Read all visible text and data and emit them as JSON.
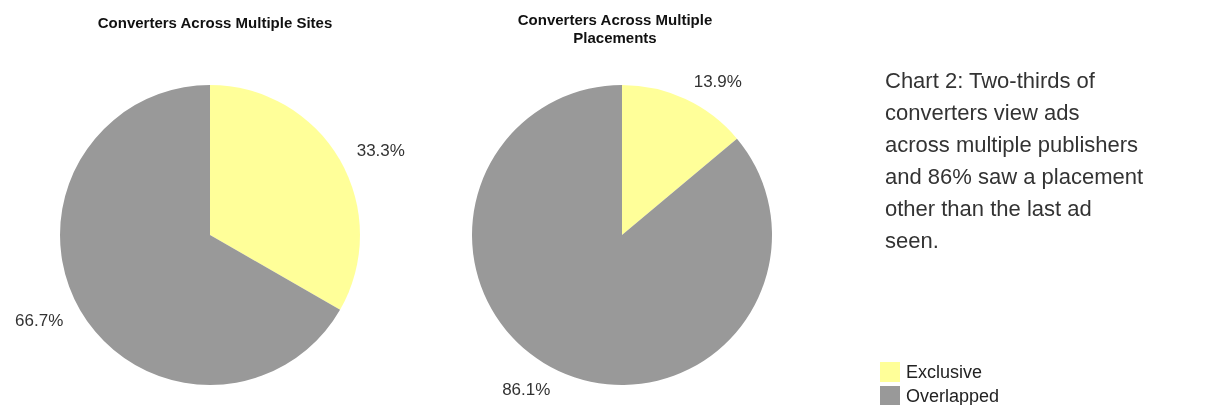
{
  "chart_data": [
    {
      "type": "pie",
      "title": "Converters Across Multiple Sites",
      "categories": [
        null,
        null
      ],
      "values": [
        33.3,
        66.7
      ],
      "value_labels": [
        "33.3%",
        "66.7%"
      ],
      "colors": [
        "#ffff99",
        "#999999"
      ],
      "legend": false
    },
    {
      "type": "pie",
      "title": "Converters Across Multiple Placements",
      "categories": [
        "Exclusive",
        "Overlapped"
      ],
      "values": [
        13.9,
        86.1
      ],
      "value_labels": [
        "13.9%",
        "86.1%"
      ],
      "colors": [
        "#ffff99",
        "#999999"
      ],
      "legend": "bottom right"
    },
    {
      "type": "other",
      "annotations": [
        "Chart 2: Two-thirds of",
        "converters view ads",
        "across multiple publishers",
        "and 86% saw a placement",
        "other than the last ad",
        "seen."
      ]
    }
  ]
}
